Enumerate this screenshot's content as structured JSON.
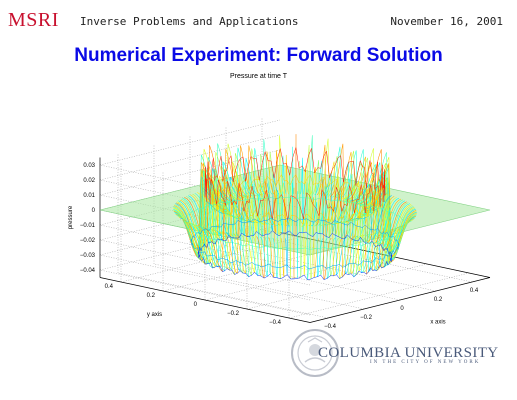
{
  "header": {
    "logo_text": "MSRI",
    "subtitle": "Inverse Problems and Applications",
    "date": "November 16, 2001"
  },
  "slide": {
    "title": "Numerical Experiment: Forward Solution"
  },
  "chart_data": {
    "type": "surface",
    "title": "Pressure at time T",
    "xlabel": "x axis",
    "ylabel": "y axis",
    "zlabel": "pressure",
    "xlim": [
      -0.5,
      0.5
    ],
    "ylim": [
      -0.5,
      0.5
    ],
    "zlim": [
      -0.045,
      0.035
    ],
    "x_ticks": [
      "−0.4",
      "−0.2",
      "0",
      "0.2",
      "0.4"
    ],
    "y_ticks": [
      "−0.4",
      "−0.2",
      "0",
      "0.2",
      "0.4"
    ],
    "z_ticks": [
      "0.03",
      "0.02",
      "0.01",
      "0",
      "−0.01",
      "−0.02",
      "−0.03",
      "−0.04"
    ],
    "surface": {
      "shape": "oscillating circular wavefront ring on flat zero plane",
      "ring_radius": 0.35,
      "max_pressure": 0.033,
      "min_pressure": -0.045
    },
    "colormap": "jet",
    "grid": true
  },
  "footer": {
    "institution": "COLUMBIA UNIVERSITY",
    "institution_sub": "IN THE CITY OF NEW YORK"
  }
}
